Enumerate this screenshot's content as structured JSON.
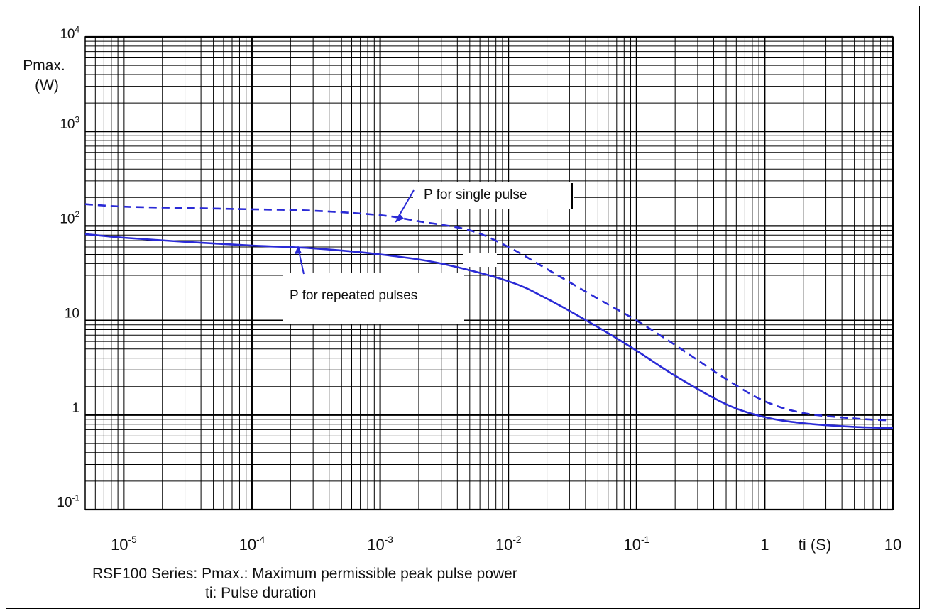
{
  "chart_data": {
    "type": "line",
    "x_scale": "log",
    "y_scale": "log",
    "xlim": [
      5e-06,
      10
    ],
    "ylim": [
      0.1,
      10000
    ],
    "grid": true,
    "ylabel": "Pmax.\n(W)",
    "xlabel": "ti (S)",
    "y_ticks": [
      {
        "value": 0.1,
        "base": "10",
        "exp": "-1"
      },
      {
        "value": 1,
        "base": "1",
        "exp": ""
      },
      {
        "value": 10,
        "base": "10",
        "exp": ""
      },
      {
        "value": 100,
        "base": "10",
        "exp": "2"
      },
      {
        "value": 1000,
        "base": "10",
        "exp": "3"
      },
      {
        "value": 10000,
        "base": "10",
        "exp": "4"
      }
    ],
    "x_ticks": [
      {
        "value": 1e-05,
        "base": "10",
        "exp": "-5"
      },
      {
        "value": 0.0001,
        "base": "10",
        "exp": "-4"
      },
      {
        "value": 0.001,
        "base": "10",
        "exp": "-3"
      },
      {
        "value": 0.01,
        "base": "10",
        "exp": "-2"
      },
      {
        "value": 0.1,
        "base": "10",
        "exp": "-1"
      },
      {
        "value": 1,
        "base": "1",
        "exp": ""
      },
      {
        "value": 10,
        "base": "10",
        "exp": ""
      }
    ],
    "series": [
      {
        "name": "P for single pulse",
        "style": "dashed",
        "color": "#2a2ad6",
        "x": [
          5e-06,
          1e-05,
          3e-05,
          0.0001,
          0.0003,
          0.001,
          0.002,
          0.005,
          0.01,
          0.02,
          0.05,
          0.1,
          0.2,
          0.5,
          1,
          2,
          5,
          9
        ],
        "y": [
          170,
          160,
          155,
          150,
          145,
          130,
          112,
          90,
          60,
          35,
          17,
          10,
          5.5,
          2.4,
          1.4,
          1.05,
          0.92,
          0.88
        ]
      },
      {
        "name": "P for repeated pulses",
        "style": "solid",
        "color": "#2a2ad6",
        "x": [
          5e-06,
          1e-05,
          3e-05,
          0.0001,
          0.0003,
          0.001,
          0.003,
          0.01,
          0.02,
          0.05,
          0.1,
          0.2,
          0.5,
          1,
          2,
          5,
          10
        ],
        "y": [
          82,
          75,
          68,
          62,
          58,
          50,
          40,
          26,
          17,
          8.5,
          4.8,
          2.6,
          1.3,
          0.95,
          0.82,
          0.75,
          0.73
        ]
      }
    ],
    "annotations": {
      "single": "P for single pulse",
      "repeated": "P for repeated pulses"
    }
  },
  "caption": {
    "line1": "RSF100 Series: Pmax.: Maximum permissible peak pulse power",
    "line2": "ti: Pulse duration"
  }
}
